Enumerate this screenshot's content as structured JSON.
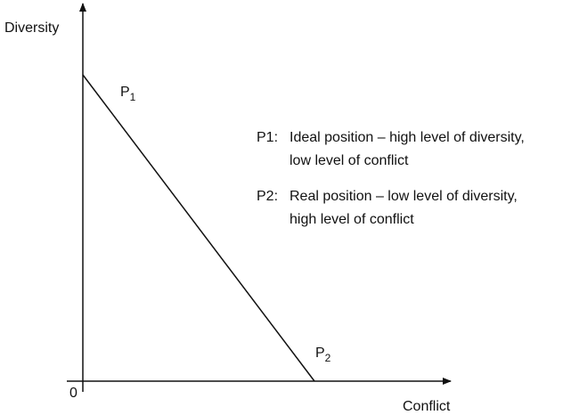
{
  "axes": {
    "y_label": "Diversity",
    "x_label": "Conflict",
    "origin": "0"
  },
  "points": [
    {
      "label": "P",
      "subscript": "1"
    },
    {
      "label": "P",
      "subscript": "2"
    }
  ],
  "legend": [
    {
      "key": "P1:",
      "lines": [
        "Ideal position – high level of diversity,",
        "low level of conflict"
      ]
    },
    {
      "key": "P2:",
      "lines": [
        "Real position – low level of diversity,",
        "high level of conflict"
      ]
    }
  ]
}
